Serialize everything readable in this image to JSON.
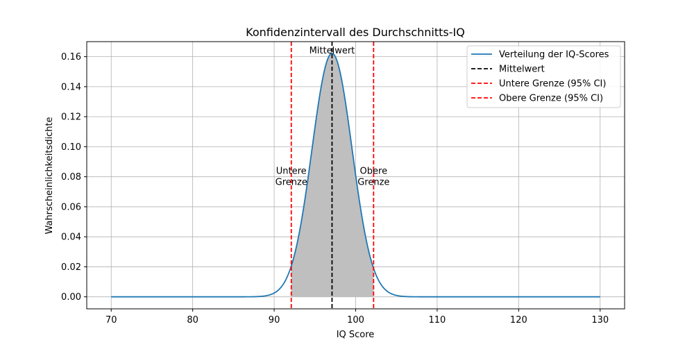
{
  "chart_data": {
    "type": "area",
    "title": "Konfidenzintervall des Durchschnitts-IQ",
    "xlabel": "IQ Score",
    "ylabel": "Wahrscheinlichkeitsdichte",
    "xlim": [
      67,
      133
    ],
    "ylim": [
      -0.008,
      0.17
    ],
    "xticks": [
      70,
      80,
      90,
      100,
      110,
      120,
      130
    ],
    "yticks": [
      0.0,
      0.02,
      0.04,
      0.06,
      0.08,
      0.1,
      0.12,
      0.14,
      0.16
    ],
    "grid": true,
    "legend_position": "top-right",
    "distribution": {
      "mean": 97.1,
      "sd": 2.46,
      "x_min": 70,
      "x_max": 130
    },
    "series": [
      {
        "name": "Verteilung der IQ-Scores",
        "style": "solid",
        "color": "#1f77b4"
      },
      {
        "name": "Mittelwert",
        "style": "dashed",
        "color": "#000000",
        "x": 97.1
      },
      {
        "name": "Untere Grenze (95% CI)",
        "style": "dashed",
        "color": "#ff0000",
        "x": 92.1
      },
      {
        "name": "Obere Grenze (95% CI)",
        "style": "dashed",
        "color": "#ff0000",
        "x": 102.2
      }
    ],
    "shaded_region": {
      "from": 92.1,
      "to": 102.2,
      "color": "#bfbfbf"
    },
    "annotations": [
      {
        "lines": [
          "Mittelwert"
        ],
        "x": 97.1,
        "y": 0.164
      },
      {
        "lines": [
          "Untere",
          "Grenze"
        ],
        "x": 92.1,
        "y": 0.08
      },
      {
        "lines": [
          "Obere",
          "Grenze"
        ],
        "x": 102.2,
        "y": 0.08
      }
    ]
  }
}
